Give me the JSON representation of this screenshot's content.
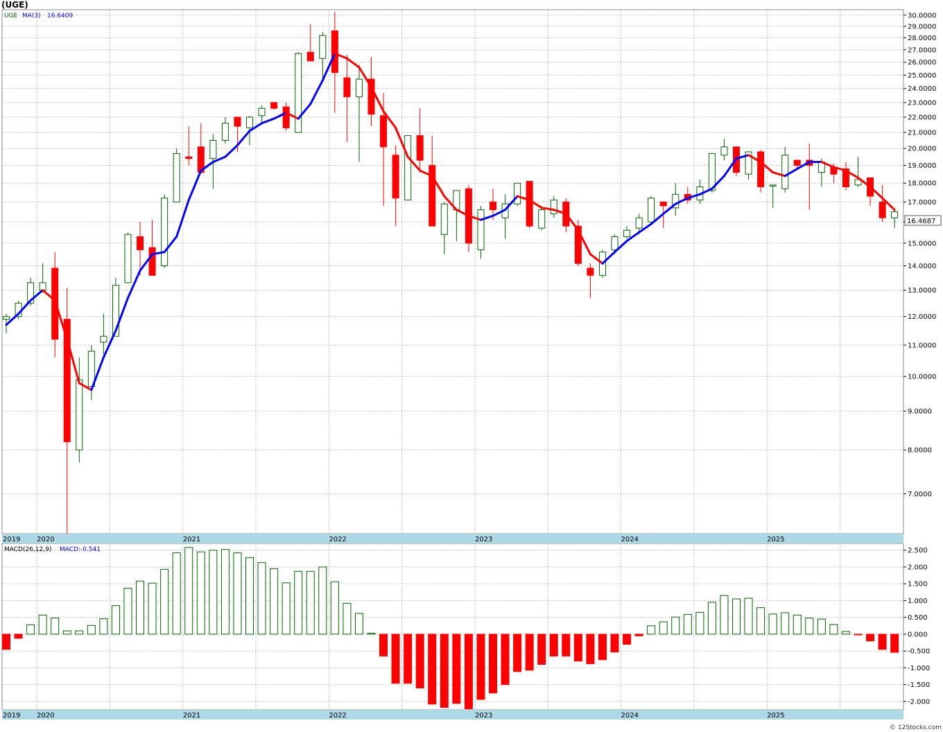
{
  "window_title": "(UGE)",
  "legend": {
    "symbol": "UGE",
    "ma_label": "MA(3)",
    "ma_value": "16.6409"
  },
  "last_price_label": "16.4687",
  "macd_legend": {
    "label": "MACD(26,12,9)",
    "value": "MACD:-0.541"
  },
  "watermark": "© 12Stocks.com",
  "colors": {
    "up": "#006400",
    "down": "#ff0000",
    "ma_up": "#0000ff",
    "ma_down": "#ff0000",
    "axis_band": "#add8e6",
    "grid": "#bbbbbb"
  },
  "chart_data": [
    {
      "type": "candlestick",
      "title": "(UGE)",
      "scale": "log",
      "ylim": [
        6.2,
        30.5
      ],
      "y_ticks": [
        7.0,
        8.0,
        9.0,
        10.0,
        11.0,
        12.0,
        13.0,
        14.0,
        15.0,
        16.0,
        17.0,
        18.0,
        19.0,
        20.0,
        21.0,
        22.0,
        23.0,
        24.0,
        25.0,
        26.0,
        27.0,
        28.0,
        29.0,
        30.0
      ],
      "y_tick_labels": [
        "7.0000",
        "8.0000",
        "9.0000",
        "10.0000",
        "11.0000",
        "12.0000",
        "13.0000",
        "14.0000",
        "15.0000",
        "16.0000",
        "17.0000",
        "18.0000",
        "19.0000",
        "20.0000",
        "21.0000",
        "22.0000",
        "23.0000",
        "24.0000",
        "25.0000",
        "26.0000",
        "27.0000",
        "28.0000",
        "29.0000",
        "30.0000"
      ],
      "x_labels": [
        {
          "label": "2019",
          "index": 0
        },
        {
          "label": "2020",
          "index": 3
        },
        {
          "label": "2021",
          "index": 15
        },
        {
          "label": "2022",
          "index": 27
        },
        {
          "label": "2023",
          "index": 39
        },
        {
          "label": "2024",
          "index": 51
        },
        {
          "label": "2025",
          "index": 63
        }
      ],
      "candles": [
        {
          "o": 11.9,
          "h": 12.1,
          "l": 11.4,
          "c": 12.0
        },
        {
          "o": 12.0,
          "h": 12.6,
          "l": 11.9,
          "c": 12.5
        },
        {
          "o": 12.5,
          "h": 13.5,
          "l": 12.4,
          "c": 13.3
        },
        {
          "o": 13.0,
          "h": 14.1,
          "l": 12.9,
          "c": 13.3
        },
        {
          "o": 13.9,
          "h": 14.6,
          "l": 10.6,
          "c": 11.2
        },
        {
          "o": 11.9,
          "h": 13.1,
          "l": 6.2,
          "c": 8.2
        },
        {
          "o": 8.0,
          "h": 10.6,
          "l": 7.7,
          "c": 9.9
        },
        {
          "o": 9.7,
          "h": 11.0,
          "l": 9.3,
          "c": 10.8
        },
        {
          "o": 11.1,
          "h": 12.1,
          "l": 10.7,
          "c": 11.3
        },
        {
          "o": 11.3,
          "h": 13.5,
          "l": 11.3,
          "c": 13.2
        },
        {
          "o": 13.3,
          "h": 15.5,
          "l": 13.3,
          "c": 15.4
        },
        {
          "o": 15.3,
          "h": 16.0,
          "l": 13.6,
          "c": 14.7
        },
        {
          "o": 14.8,
          "h": 16.1,
          "l": 13.6,
          "c": 13.6
        },
        {
          "o": 14.0,
          "h": 17.4,
          "l": 13.9,
          "c": 17.2
        },
        {
          "o": 17.0,
          "h": 20.0,
          "l": 17.0,
          "c": 19.7
        },
        {
          "o": 19.5,
          "h": 21.4,
          "l": 19.0,
          "c": 19.4
        },
        {
          "o": 20.1,
          "h": 21.6,
          "l": 18.5,
          "c": 18.6
        },
        {
          "o": 19.4,
          "h": 20.9,
          "l": 17.7,
          "c": 20.5
        },
        {
          "o": 20.5,
          "h": 22.0,
          "l": 20.3,
          "c": 21.6
        },
        {
          "o": 22.0,
          "h": 22.0,
          "l": 19.8,
          "c": 21.4
        },
        {
          "o": 21.3,
          "h": 22.1,
          "l": 20.2,
          "c": 22.0
        },
        {
          "o": 22.1,
          "h": 22.8,
          "l": 21.6,
          "c": 22.6
        },
        {
          "o": 23.0,
          "h": 23.0,
          "l": 22.5,
          "c": 22.6
        },
        {
          "o": 22.7,
          "h": 23.0,
          "l": 21.1,
          "c": 21.3
        },
        {
          "o": 21.0,
          "h": 26.8,
          "l": 21.0,
          "c": 26.7
        },
        {
          "o": 26.8,
          "h": 29.2,
          "l": 26.1,
          "c": 26.1
        },
        {
          "o": 26.3,
          "h": 28.5,
          "l": 24.5,
          "c": 28.2
        },
        {
          "o": 28.6,
          "h": 30.3,
          "l": 22.3,
          "c": 25.2
        },
        {
          "o": 24.8,
          "h": 26.6,
          "l": 20.4,
          "c": 23.4
        },
        {
          "o": 23.4,
          "h": 25.8,
          "l": 19.2,
          "c": 24.7
        },
        {
          "o": 24.7,
          "h": 26.4,
          "l": 21.4,
          "c": 22.2
        },
        {
          "o": 22.1,
          "h": 23.7,
          "l": 16.8,
          "c": 20.1
        },
        {
          "o": 19.6,
          "h": 20.2,
          "l": 15.8,
          "c": 17.2
        },
        {
          "o": 17.1,
          "h": 20.8,
          "l": 17.1,
          "c": 20.8
        },
        {
          "o": 20.8,
          "h": 22.6,
          "l": 18.6,
          "c": 19.3
        },
        {
          "o": 19.0,
          "h": 20.8,
          "l": 15.8,
          "c": 15.8
        },
        {
          "o": 15.4,
          "h": 17.0,
          "l": 14.5,
          "c": 16.9
        },
        {
          "o": 16.6,
          "h": 17.6,
          "l": 15.1,
          "c": 17.6
        },
        {
          "o": 17.7,
          "h": 17.9,
          "l": 14.6,
          "c": 15.0
        },
        {
          "o": 14.7,
          "h": 16.8,
          "l": 14.3,
          "c": 16.6
        },
        {
          "o": 17.0,
          "h": 17.7,
          "l": 16.1,
          "c": 16.6
        },
        {
          "o": 16.2,
          "h": 17.4,
          "l": 15.2,
          "c": 16.9
        },
        {
          "o": 16.9,
          "h": 18.0,
          "l": 16.8,
          "c": 18.0
        },
        {
          "o": 18.1,
          "h": 18.1,
          "l": 15.7,
          "c": 15.8
        },
        {
          "o": 15.7,
          "h": 16.8,
          "l": 15.6,
          "c": 16.6
        },
        {
          "o": 16.4,
          "h": 17.3,
          "l": 16.2,
          "c": 17.1
        },
        {
          "o": 17.0,
          "h": 17.2,
          "l": 15.5,
          "c": 15.8
        },
        {
          "o": 15.8,
          "h": 16.1,
          "l": 14.0,
          "c": 14.1
        },
        {
          "o": 13.9,
          "h": 14.1,
          "l": 12.7,
          "c": 13.6
        },
        {
          "o": 13.6,
          "h": 14.7,
          "l": 13.5,
          "c": 14.6
        },
        {
          "o": 14.7,
          "h": 15.4,
          "l": 14.5,
          "c": 15.3
        },
        {
          "o": 15.3,
          "h": 15.8,
          "l": 15.2,
          "c": 15.6
        },
        {
          "o": 15.7,
          "h": 16.4,
          "l": 15.4,
          "c": 16.2
        },
        {
          "o": 16.0,
          "h": 17.3,
          "l": 15.9,
          "c": 17.2
        },
        {
          "o": 17.0,
          "h": 17.0,
          "l": 15.7,
          "c": 16.8
        },
        {
          "o": 16.7,
          "h": 18.0,
          "l": 16.3,
          "c": 17.4
        },
        {
          "o": 17.4,
          "h": 17.8,
          "l": 16.9,
          "c": 17.1
        },
        {
          "o": 17.1,
          "h": 18.2,
          "l": 16.9,
          "c": 17.8
        },
        {
          "o": 17.6,
          "h": 19.7,
          "l": 17.5,
          "c": 19.7
        },
        {
          "o": 19.6,
          "h": 20.6,
          "l": 19.3,
          "c": 20.1
        },
        {
          "o": 20.1,
          "h": 20.1,
          "l": 18.4,
          "c": 18.6
        },
        {
          "o": 18.5,
          "h": 19.8,
          "l": 18.2,
          "c": 19.8
        },
        {
          "o": 19.8,
          "h": 19.9,
          "l": 17.5,
          "c": 17.8
        },
        {
          "o": 17.9,
          "h": 17.9,
          "l": 16.7,
          "c": 17.9
        },
        {
          "o": 17.7,
          "h": 20.1,
          "l": 17.5,
          "c": 19.6
        },
        {
          "o": 19.3,
          "h": 19.3,
          "l": 18.8,
          "c": 19.0
        },
        {
          "o": 19.3,
          "h": 20.3,
          "l": 16.6,
          "c": 19.0
        },
        {
          "o": 18.6,
          "h": 19.4,
          "l": 17.8,
          "c": 19.2
        },
        {
          "o": 18.9,
          "h": 19.1,
          "l": 18.0,
          "c": 18.5
        },
        {
          "o": 18.8,
          "h": 19.2,
          "l": 17.6,
          "c": 17.8
        },
        {
          "o": 17.9,
          "h": 19.5,
          "l": 17.8,
          "c": 18.2
        },
        {
          "o": 18.3,
          "h": 18.3,
          "l": 16.8,
          "c": 17.3
        },
        {
          "o": 17.0,
          "h": 17.9,
          "l": 16.0,
          "c": 16.2
        },
        {
          "o": 16.2,
          "h": 16.6,
          "l": 15.7,
          "c": 16.5
        }
      ],
      "ma": [
        11.7,
        12.1,
        12.6,
        13.0,
        12.6,
        11.2,
        9.8,
        9.6,
        10.6,
        11.5,
        12.7,
        13.8,
        14.5,
        14.6,
        15.3,
        17.1,
        18.7,
        19.2,
        19.5,
        20.2,
        21.1,
        21.6,
        21.9,
        22.3,
        21.9,
        22.9,
        24.6,
        26.7,
        26.3,
        25.6,
        24.1,
        22.4,
        21.3,
        19.5,
        18.7,
        18.4,
        17.3,
        16.6,
        16.3,
        16.1,
        16.3,
        16.6,
        17.3,
        17.1,
        16.7,
        16.6,
        16.4,
        15.6,
        14.5,
        14.1,
        14.6,
        15.1,
        15.5,
        15.9,
        16.4,
        16.9,
        17.2,
        17.4,
        17.7,
        18.4,
        19.4,
        19.6,
        19.2,
        18.6,
        18.4,
        18.8,
        19.2,
        19.2,
        18.9,
        18.7,
        18.3,
        17.8,
        17.2,
        16.6
      ]
    },
    {
      "type": "bar",
      "title": "MACD(26,12,9)",
      "ylim": [
        -2.25,
        2.7
      ],
      "y_ticks": [
        -2.0,
        -1.5,
        -1.0,
        -0.5,
        0.0,
        0.5,
        1.0,
        1.5,
        2.0,
        2.5
      ],
      "y_tick_labels": [
        "-2.000",
        "-1.500",
        "-1.000",
        "-0.500",
        "0.000",
        "0.500",
        "1.000",
        "1.500",
        "2.000",
        "2.500"
      ],
      "values": [
        -0.45,
        -0.12,
        0.28,
        0.57,
        0.48,
        0.1,
        0.1,
        0.26,
        0.46,
        0.85,
        1.37,
        1.58,
        1.52,
        1.93,
        2.42,
        2.58,
        2.45,
        2.5,
        2.52,
        2.42,
        2.28,
        2.13,
        1.95,
        1.53,
        1.87,
        1.87,
        2.0,
        1.56,
        0.92,
        0.62,
        0.03,
        -0.65,
        -1.46,
        -1.46,
        -1.6,
        -2.08,
        -2.18,
        -2.06,
        -2.22,
        -1.94,
        -1.75,
        -1.5,
        -1.11,
        -1.07,
        -0.9,
        -0.65,
        -0.65,
        -0.8,
        -0.88,
        -0.76,
        -0.53,
        -0.3,
        -0.05,
        0.25,
        0.37,
        0.51,
        0.59,
        0.65,
        0.95,
        1.15,
        1.05,
        1.07,
        0.79,
        0.6,
        0.64,
        0.57,
        0.48,
        0.45,
        0.29,
        0.08,
        -0.01,
        -0.2,
        -0.45,
        -0.54
      ]
    }
  ]
}
